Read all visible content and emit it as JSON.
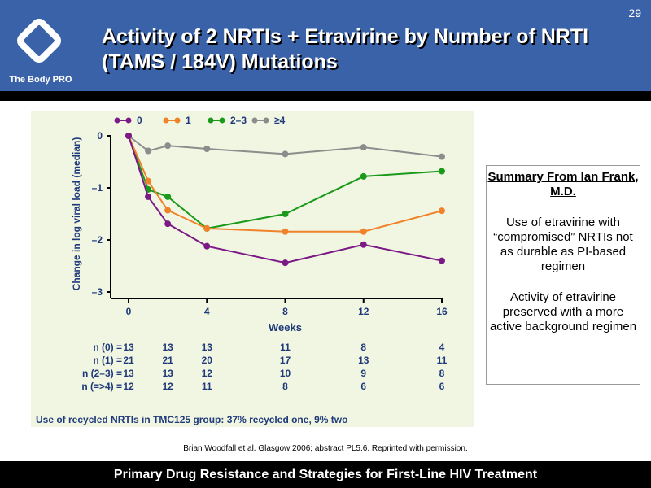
{
  "header": {
    "title": "Activity of 2 NRTIs + Etravirine by Number of NRTI (TAMS / 184V) Mutations",
    "brand": "The Body PRO",
    "page_number": "29"
  },
  "chart_data": {
    "type": "line",
    "x": [
      0,
      1,
      2,
      4,
      8,
      12,
      16
    ],
    "xticks": [
      0,
      4,
      8,
      12,
      16
    ],
    "yticks": [
      0,
      -1,
      -2,
      -3
    ],
    "ytick_labels": [
      "0",
      "–1",
      "–2",
      "–3"
    ],
    "xlabel": "Weeks",
    "ylabel": "Change in log viral load (median)",
    "xlim": [
      0,
      16
    ],
    "ylim": [
      -3,
      0
    ],
    "legend": "top",
    "series": [
      {
        "name": "0",
        "color": "#7b1a86",
        "values": [
          0,
          -1.17,
          -1.69,
          -2.12,
          -2.44,
          -2.09,
          -2.4
        ]
      },
      {
        "name": "1",
        "color": "#f0822a",
        "values": [
          0,
          -0.87,
          -1.43,
          -1.78,
          -1.84,
          -1.84,
          -1.44
        ]
      },
      {
        "name": "2–3",
        "color": "#1a9a1a",
        "values": [
          0,
          -1.03,
          -1.17,
          -1.78,
          -1.5,
          -0.78,
          -0.68
        ]
      },
      {
        "name": "≥4",
        "color": "#8c8c8c",
        "values": [
          0,
          -0.29,
          -0.19,
          -0.25,
          -0.35,
          -0.22,
          -0.4
        ]
      }
    ]
  },
  "n_table": {
    "weeks": [
      0,
      2,
      4,
      8,
      12,
      16
    ],
    "rows": [
      {
        "label": "n (0) =",
        "values": [
          "13",
          "13",
          "13",
          "11",
          "8",
          "4"
        ]
      },
      {
        "label": "n (1) =",
        "values": [
          "21",
          "21",
          "20",
          "17",
          "13",
          "11"
        ]
      },
      {
        "label": "n (2–3) =",
        "values": [
          "13",
          "13",
          "12",
          "10",
          "9",
          "8"
        ]
      },
      {
        "label": "n (=>4) =",
        "values": [
          "12",
          "12",
          "11",
          "8",
          "6",
          "6"
        ]
      }
    ]
  },
  "recycled_note": "Use of recycled NRTIs in TMC125 group: 37% recycled one, 9% two",
  "summary": {
    "heading": "Summary From Ian Frank, M.D.",
    "points": [
      "Use of etravirine with “compromised” NRTIs not as durable as PI-based regimen",
      "Activity of etravirine preserved with a more active background regimen"
    ]
  },
  "citation": "Brian Woodfall et al. Glasgow 2006; abstract PL5.6. Reprinted with permission.",
  "footer": "Primary Drug Resistance and Strategies for First-Line HIV Treatment"
}
